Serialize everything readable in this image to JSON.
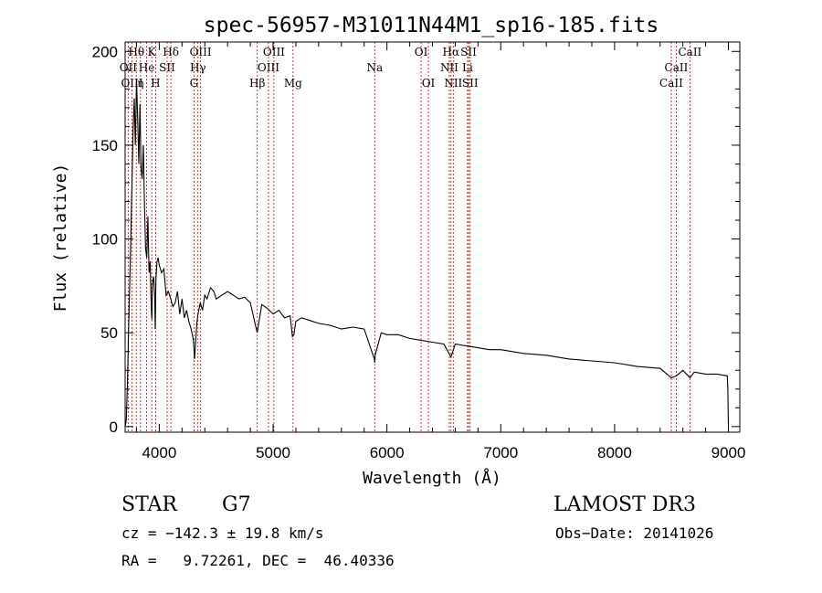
{
  "chart_data": {
    "type": "line",
    "title": "spec-56957-M31011N44M1_sp16-185.fits",
    "xlabel": "Wavelength (Å)",
    "ylabel": "Flux (relative)",
    "xlim": [
      3700,
      9100
    ],
    "ylim": [
      -3,
      205
    ],
    "xticks": [
      4000,
      5000,
      6000,
      7000,
      8000,
      9000
    ],
    "yticks": [
      0,
      50,
      100,
      150,
      200
    ],
    "spectrum": {
      "x": [
        3700,
        3710,
        3720,
        3730,
        3740,
        3750,
        3760,
        3770,
        3780,
        3790,
        3800,
        3810,
        3820,
        3830,
        3840,
        3850,
        3860,
        3870,
        3880,
        3890,
        3900,
        3910,
        3920,
        3930,
        3935,
        3940,
        3950,
        3960,
        3965,
        3970,
        3980,
        3990,
        4000,
        4020,
        4040,
        4060,
        4080,
        4100,
        4120,
        4140,
        4160,
        4180,
        4200,
        4220,
        4240,
        4260,
        4280,
        4300,
        4310,
        4330,
        4340,
        4360,
        4380,
        4400,
        4420,
        4450,
        4480,
        4500,
        4550,
        4600,
        4650,
        4700,
        4750,
        4800,
        4860,
        4900,
        4950,
        5000,
        5050,
        5100,
        5150,
        5170,
        5183,
        5200,
        5250,
        5300,
        5400,
        5500,
        5600,
        5700,
        5800,
        5890,
        5893,
        5896,
        5950,
        6000,
        6100,
        6200,
        6300,
        6400,
        6500,
        6563,
        6600,
        6700,
        6800,
        6900,
        7000,
        7200,
        7400,
        7600,
        7800,
        8000,
        8200,
        8400,
        8498,
        8542,
        8600,
        8662,
        8700,
        8800,
        8900,
        8990,
        8995,
        9000
      ],
      "y": [
        0,
        3,
        22,
        50,
        75,
        100,
        130,
        158,
        175,
        150,
        185,
        165,
        140,
        172,
        138,
        132,
        150,
        118,
        95,
        90,
        112,
        82,
        88,
        62,
        57,
        76,
        80,
        70,
        52,
        78,
        88,
        90,
        86,
        82,
        84,
        70,
        72,
        68,
        64,
        66,
        72,
        60,
        68,
        58,
        62,
        56,
        52,
        46,
        36,
        55,
        60,
        66,
        62,
        70,
        68,
        74,
        72,
        68,
        70,
        72,
        70,
        68,
        69,
        66,
        50,
        65,
        63,
        60,
        62,
        58,
        59,
        48,
        49,
        56,
        58,
        57,
        55,
        54,
        52,
        53,
        52,
        36,
        34,
        38,
        50,
        49,
        49,
        47,
        46,
        45,
        44,
        37,
        44,
        43,
        42,
        41,
        41,
        39,
        38,
        36,
        35,
        34,
        32,
        31,
        26,
        27,
        30,
        26,
        29,
        28,
        28,
        27,
        20,
        1
      ]
    },
    "lines": [
      {
        "label": "Hθ",
        "x": 3798,
        "row": 1
      },
      {
        "label": "K",
        "x": 3934,
        "row": 1
      },
      {
        "label": "Hδ",
        "x": 4102,
        "row": 1
      },
      {
        "label": "OIII",
        "x": 4363,
        "row": 1
      },
      {
        "label": "OIII",
        "x": 5007,
        "row": 1
      },
      {
        "label": "OI",
        "x": 6300,
        "row": 1
      },
      {
        "label": "Hα",
        "x": 6563,
        "row": 1
      },
      {
        "label": "SII",
        "x": 6717,
        "row": 1
      },
      {
        "label": "CaII",
        "x": 8662,
        "row": 1
      },
      {
        "label": "OII",
        "x": 3727,
        "row": 2
      },
      {
        "label": "He",
        "x": 3889,
        "row": 2
      },
      {
        "label": "SII",
        "x": 4069,
        "row": 2
      },
      {
        "label": "Hγ",
        "x": 4340,
        "row": 2
      },
      {
        "label": "OIII",
        "x": 4959,
        "row": 2
      },
      {
        "label": "Na",
        "x": 5893,
        "row": 2
      },
      {
        "label": "NII",
        "x": 6548,
        "row": 2
      },
      {
        "label": "Li",
        "x": 6708,
        "row": 2
      },
      {
        "label": "CaII",
        "x": 8542,
        "row": 2
      },
      {
        "label": "OIII",
        "x": 3760,
        "row": 3
      },
      {
        "label": "η",
        "x": 3835,
        "row": 3
      },
      {
        "label": "H",
        "x": 3968,
        "row": 3
      },
      {
        "label": "G",
        "x": 4305,
        "row": 3
      },
      {
        "label": "Hβ",
        "x": 4861,
        "row": 3
      },
      {
        "label": "Mg",
        "x": 5175,
        "row": 3
      },
      {
        "label": "OI",
        "x": 6364,
        "row": 3
      },
      {
        "label": "NII",
        "x": 6583,
        "row": 3
      },
      {
        "label": "SII",
        "x": 6731,
        "row": 3
      },
      {
        "label": "CaII",
        "x": 8498,
        "row": 3
      }
    ]
  },
  "info": {
    "class": "STAR",
    "subclass": "G7",
    "survey": "LAMOST DR3",
    "cz": "cz = −142.3 ± 19.8 km/s",
    "obs_date": "Obs−Date: 20141026",
    "radec": "RA =   9.72261, DEC =  46.40336"
  },
  "colors": {
    "spectrum": "#000000",
    "line_marker": "#cc0000"
  }
}
